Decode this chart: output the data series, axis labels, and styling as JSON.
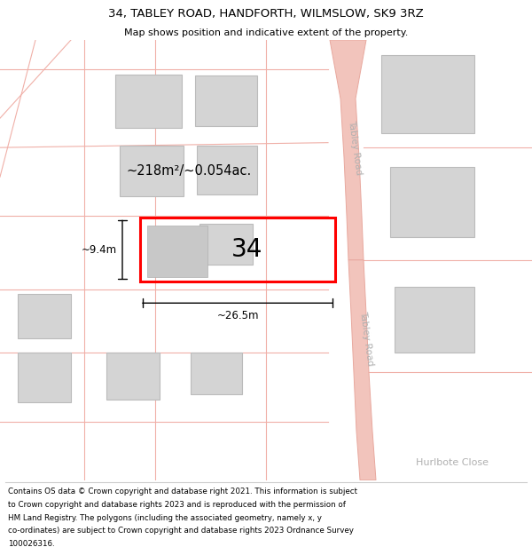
{
  "title": "34, TABLEY ROAD, HANDFORTH, WILMSLOW, SK9 3RZ",
  "subtitle": "Map shows position and indicative extent of the property.",
  "footer_line1": "Contains OS data © Crown copyright and database right 2021. This information is subject",
  "footer_line2": "to Crown copyright and database rights 2023 and is reproduced with the permission of",
  "footer_line3": "HM Land Registry. The polygons (including the associated geometry, namely x, y",
  "footer_line4": "co-ordinates) are subject to Crown copyright and database rights 2023 Ordnance Survey",
  "footer_line5": "100026316.",
  "map_bg": "#ffffff",
  "road_fill": "#f2c4bc",
  "road_edge": "#e8a89e",
  "road_line": "#f0b0a8",
  "building_fill": "#d4d4d4",
  "building_edge": "#bbbbbb",
  "highlight_edge": "#ff0000",
  "highlight_edge_width": 2.2,
  "road_label_color": "#b0b0b0",
  "area_label": "~218m²/~0.054ac.",
  "property_label": "34",
  "width_label": "~26.5m",
  "height_label": "~9.4m"
}
